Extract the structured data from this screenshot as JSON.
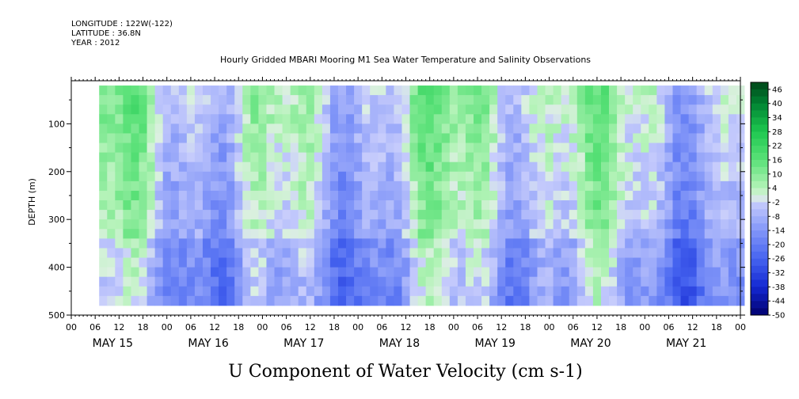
{
  "header": {
    "longitude": "LONGITUDE : 122W(-122)",
    "latitude": "LATITUDE : 36.8N",
    "year": "YEAR : 2012"
  },
  "chart_data": {
    "type": "heatmap",
    "title": "Hourly Gridded MBARI Mooring M1 Sea Water Temperature and Salinity Observations",
    "xlabel": "U Component of Water Velocity (cm s-1)",
    "ylabel": "DEPTH (m)",
    "y_ticks": [
      100,
      200,
      300,
      400,
      500
    ],
    "ylim": [
      500,
      10
    ],
    "x_hour_labels": [
      "00",
      "06",
      "12",
      "18",
      "00",
      "06",
      "12",
      "18",
      "00",
      "06",
      "12",
      "18",
      "00",
      "06",
      "12",
      "18",
      "00",
      "06",
      "12",
      "18",
      "00",
      "06",
      "12",
      "18",
      "00",
      "06",
      "12",
      "18",
      "00"
    ],
    "date_labels": [
      "MAY 15",
      "MAY 16",
      "MAY 17",
      "MAY 18",
      "MAY 19",
      "MAY 20",
      "MAY 21"
    ],
    "xlim": [
      "2012-05-15 00:00",
      "2012-05-22 00:00"
    ],
    "data_xrange": [
      "2012-05-15 07:00",
      "2012-05-22 00:00"
    ],
    "data_yrange": [
      20,
      480
    ],
    "colorbar_labels": [
      "46",
      "40",
      "34",
      "28",
      "22",
      "16",
      "10",
      "4",
      "-2",
      "-8",
      "-14",
      "-20",
      "-26",
      "-32",
      "-38",
      "-44",
      "-50"
    ],
    "colorbar_levels": [
      -50,
      -47,
      -44,
      -41,
      -38,
      -35,
      -32,
      -29,
      -26,
      -23,
      -20,
      -17,
      -14,
      -11,
      -8,
      -5,
      -2,
      1,
      4,
      7,
      10,
      13,
      16,
      19,
      22,
      25,
      28,
      31,
      34,
      37,
      40,
      43,
      46,
      49
    ],
    "colors": {
      "negative_strong": "#000080",
      "negative_mid": "#2b48e8",
      "negative_weak": "#c8cdfb",
      "positive_weak": "#b4f3b8",
      "positive_mid": "#2cd85a",
      "positive_strong": "#004a1a"
    }
  }
}
